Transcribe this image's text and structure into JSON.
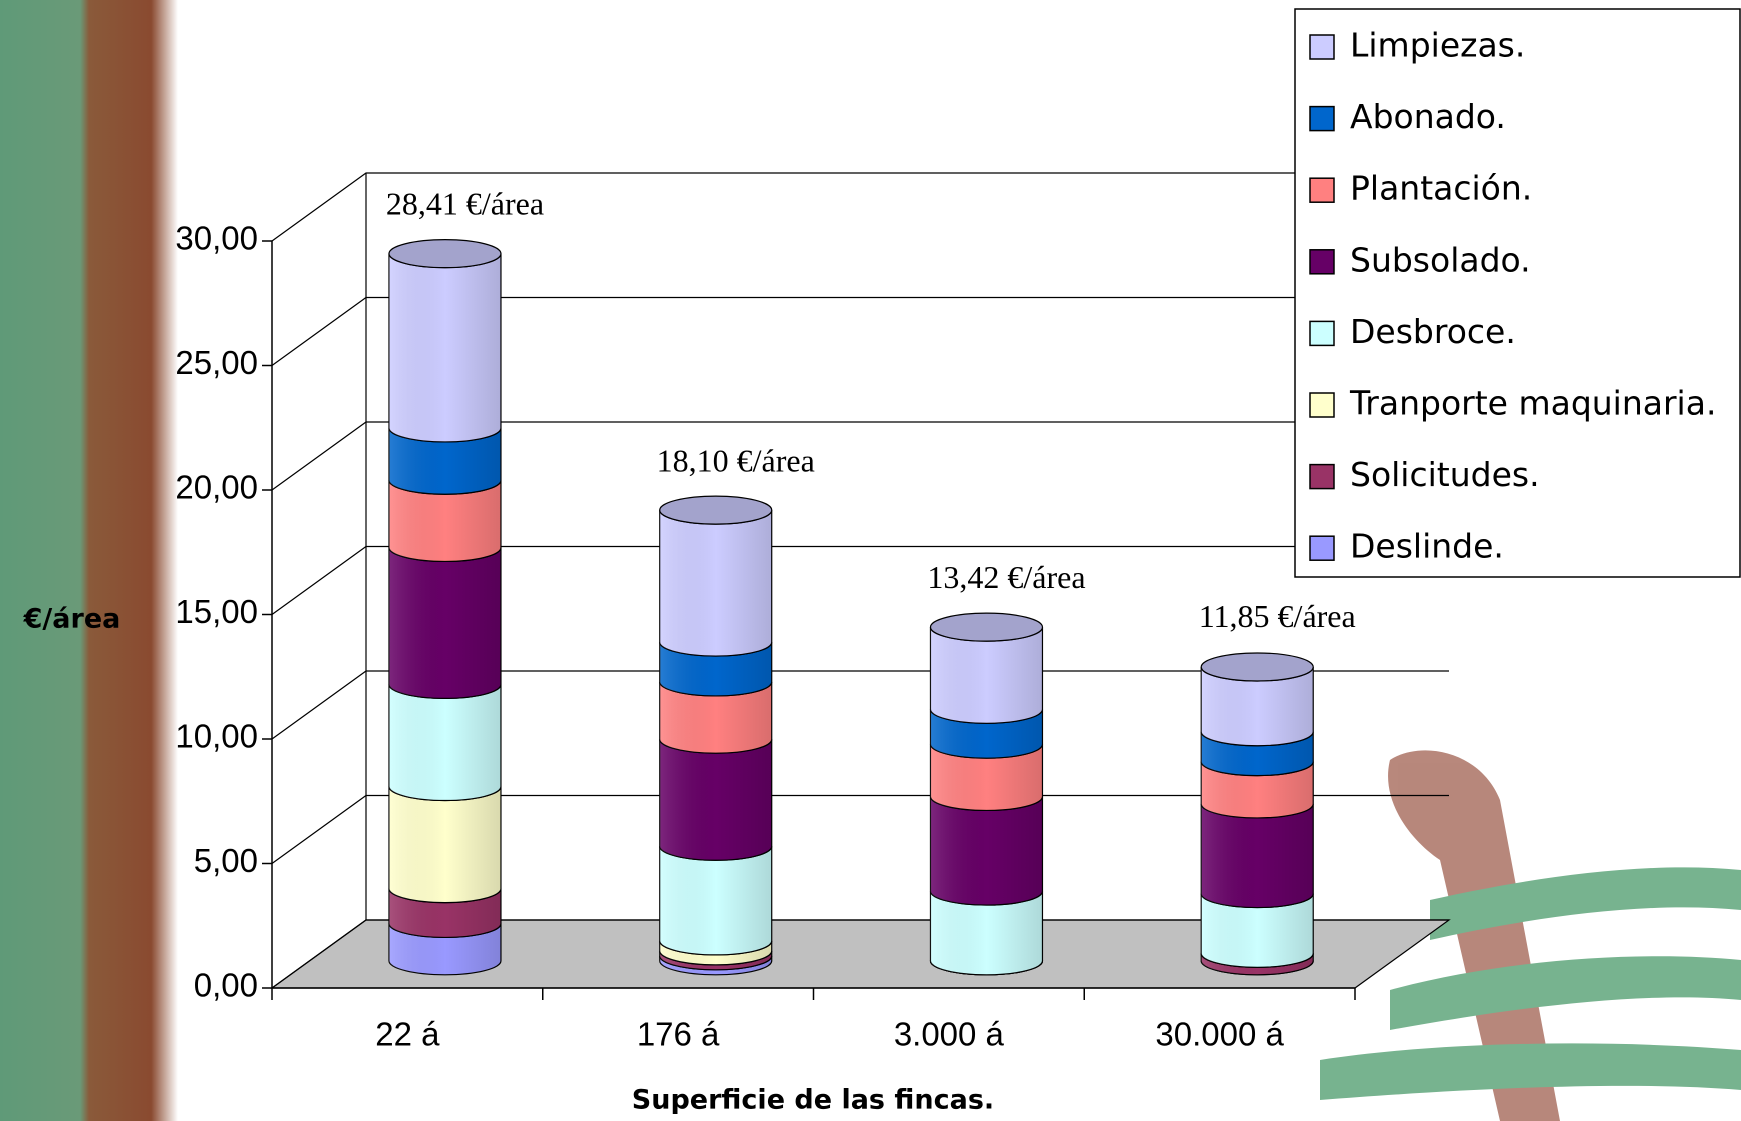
{
  "chart_data": {
    "type": "bar3d_stacked",
    "xlabel": "Superficie de las fincas.",
    "ylabel": "€/área",
    "categories": [
      "22 á",
      "176 á",
      "3.000 á",
      "30.000 á"
    ],
    "series": [
      {
        "name": "Deslinde.",
        "color": "#9999ff",
        "values": [
          1.5,
          0.2,
          0,
          0
        ]
      },
      {
        "name": "Solicitudes.",
        "color": "#993366",
        "values": [
          1.4,
          0.2,
          0,
          0.3
        ]
      },
      {
        "name": "Tranporte maquinaria.",
        "color": "#ffffcc",
        "values": [
          4.1,
          0.4,
          0,
          0
        ]
      },
      {
        "name": "Desbroce.",
        "color": "#ccffff",
        "values": [
          4.1,
          3.8,
          2.8,
          2.4
        ]
      },
      {
        "name": "Subsolado.",
        "color": "#660066",
        "values": [
          5.5,
          4.3,
          3.8,
          3.6
        ]
      },
      {
        "name": "Plantación.",
        "color": "#ff8080",
        "values": [
          2.7,
          2.3,
          2.1,
          1.7
        ]
      },
      {
        "name": "Abonado.",
        "color": "#0066cc",
        "values": [
          2.1,
          1.6,
          1.4,
          1.2
        ]
      },
      {
        "name": "Limpiezas.",
        "color": "#ccccff",
        "values": [
          7.0,
          5.3,
          3.3,
          2.6
        ]
      }
    ],
    "totals": {
      "values": [
        28.41,
        18.1,
        13.42,
        11.85
      ],
      "value_labels": [
        "28,41 €/área",
        "18,10 €/área",
        "13,42 €/área",
        "11,85 €/área"
      ]
    },
    "ylim": [
      0,
      30
    ],
    "yticks": [
      {
        "value": 0,
        "label": "0,00"
      },
      {
        "value": 5,
        "label": "5,00"
      },
      {
        "value": 10,
        "label": "10,00"
      },
      {
        "value": 15,
        "label": "15,00"
      },
      {
        "value": 20,
        "label": "20,00"
      },
      {
        "value": 25,
        "label": "25,00"
      },
      {
        "value": 30,
        "label": "30,00"
      }
    ],
    "grid": true,
    "legend": "upper right"
  }
}
